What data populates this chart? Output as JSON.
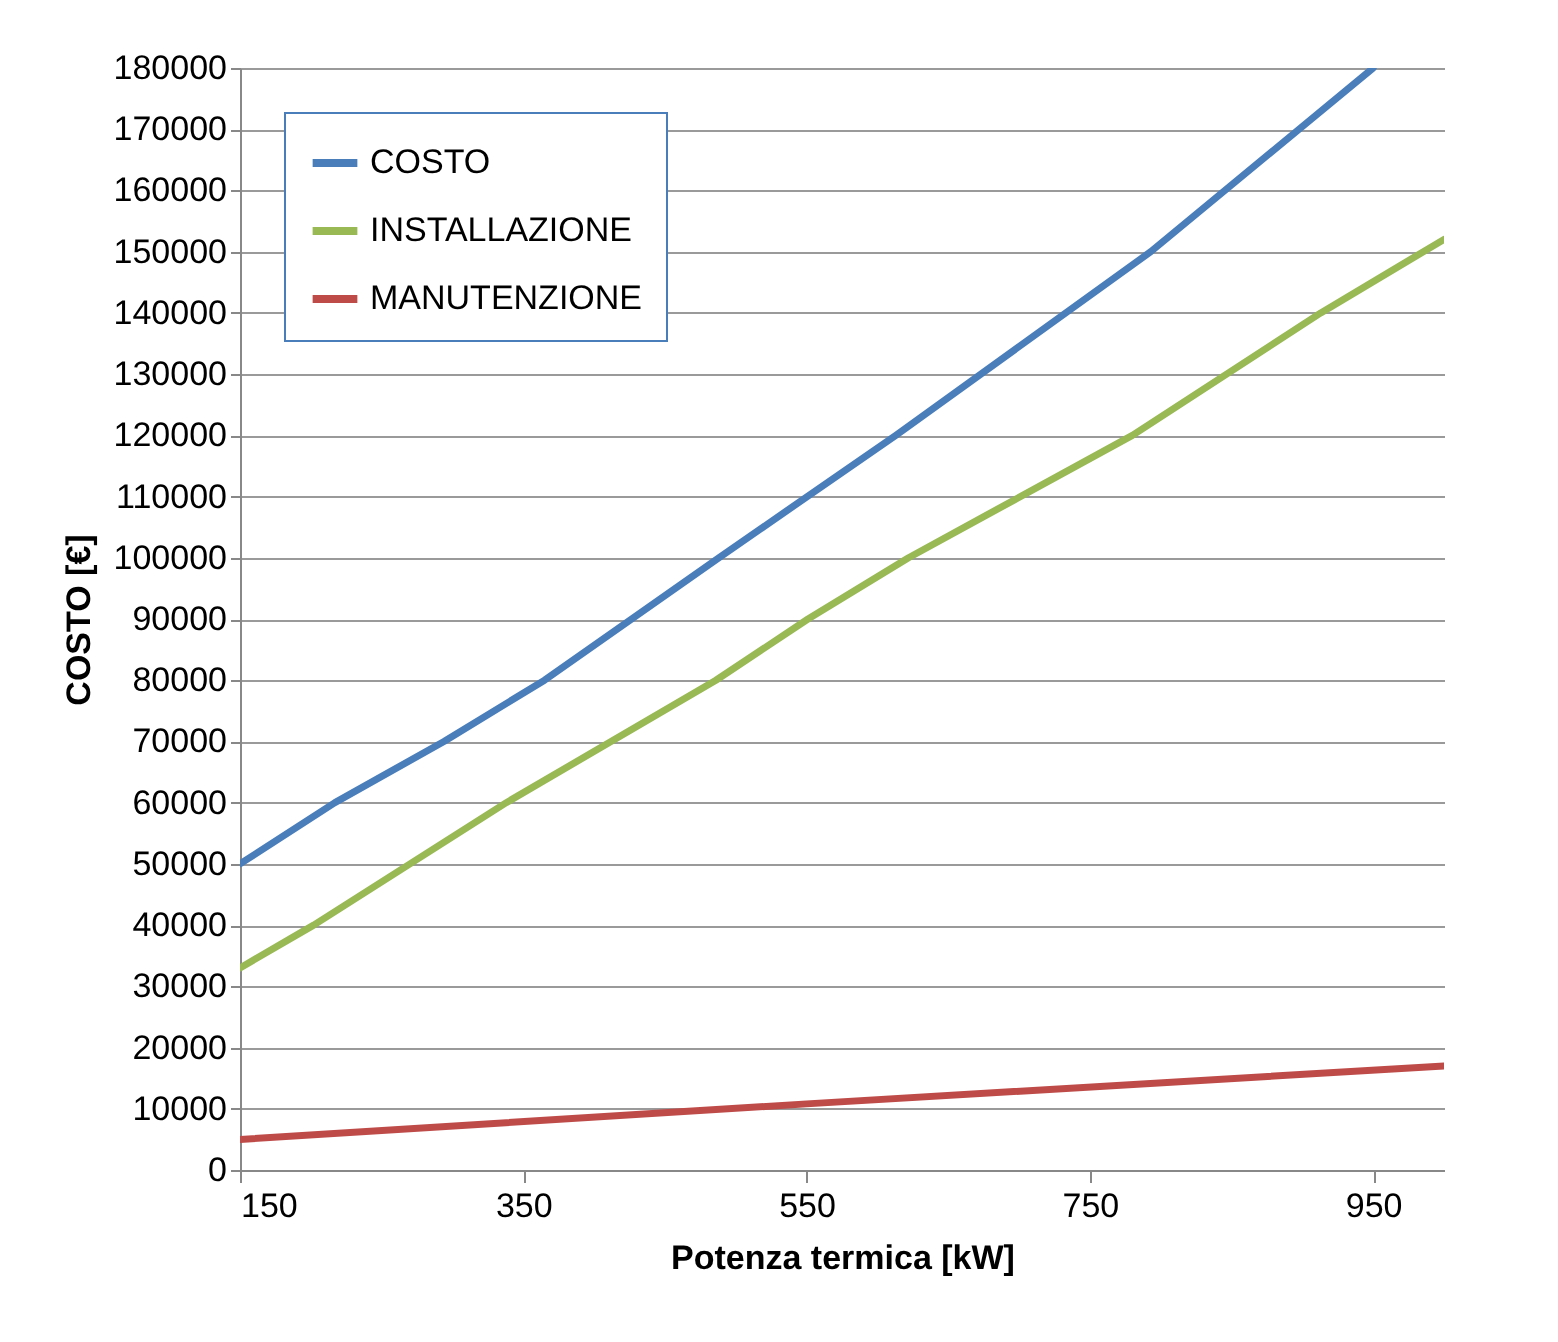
{
  "chart_data": {
    "type": "line",
    "xlabel": "Potenza termica  [kW]",
    "ylabel": "COSTO [€]",
    "xlim": [
      150,
      1000
    ],
    "xticks": [
      150,
      350,
      550,
      750,
      950
    ],
    "ylim": [
      0,
      180000
    ],
    "yticks": [
      0,
      10000,
      20000,
      30000,
      40000,
      50000,
      60000,
      70000,
      80000,
      90000,
      100000,
      110000,
      120000,
      130000,
      140000,
      150000,
      160000,
      170000,
      180000
    ],
    "grid": "y",
    "legend": "top left",
    "line_style": "solid",
    "series": [
      {
        "name": "COSTO",
        "color": "#4a7ebb",
        "x": [
          150,
          217,
          294,
          365,
          488,
          613,
          793,
          950
        ],
        "values": [
          50000,
          60000,
          70000,
          80000,
          100000,
          120000,
          150000,
          180000
        ]
      },
      {
        "name": "INSTALLAZIONE",
        "color": "#98b954",
        "x": [
          150,
          202,
          338,
          486,
          551,
          622,
          780,
          913,
          1000
        ],
        "values": [
          33000,
          40000,
          60000,
          80000,
          90000,
          100000,
          120000,
          140000,
          152000
        ]
      },
      {
        "name": "MANUTENZIONE",
        "color": "#be4b48",
        "x": [
          150,
          550,
          1000
        ],
        "values": [
          5000,
          10800,
          17000
        ]
      }
    ]
  }
}
